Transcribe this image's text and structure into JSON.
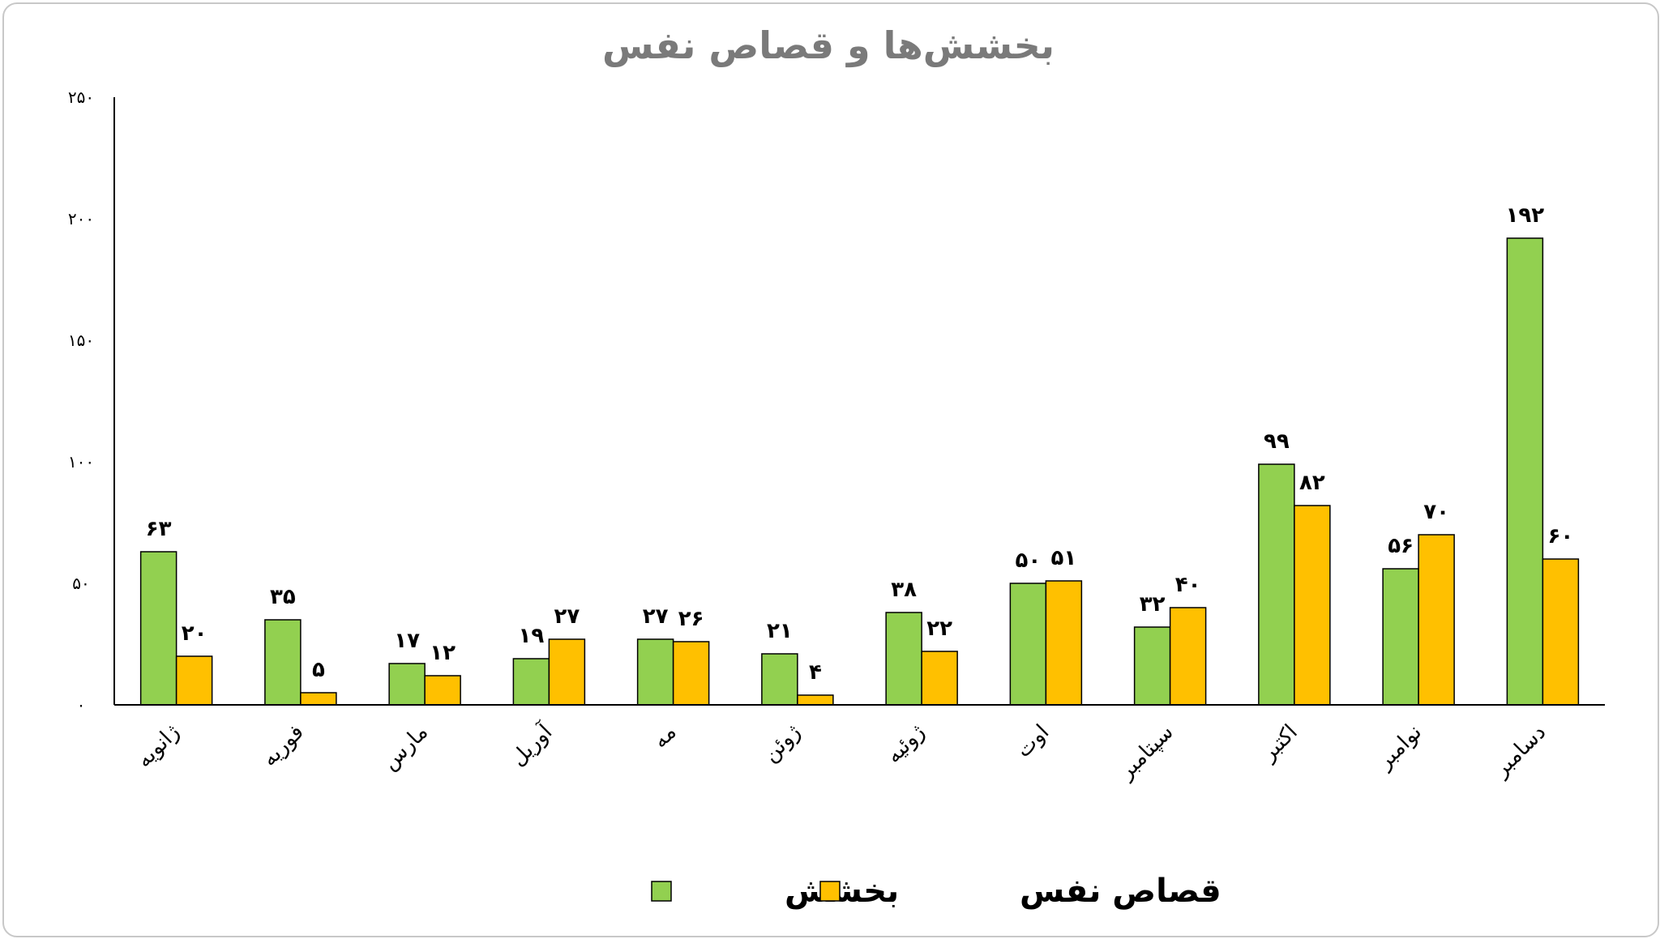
{
  "chart_data": {
    "type": "bar",
    "title": "بخشش‌ها و قصاص نفس",
    "xlabel": "",
    "ylabel": "",
    "ylim": [
      0,
      250
    ],
    "yticks": [
      0,
      50,
      100,
      150,
      200,
      250
    ],
    "ytick_labels": [
      "۰",
      "۵۰",
      "۱۰۰",
      "۱۵۰",
      "۲۰۰",
      "۲۵۰"
    ],
    "grid": false,
    "legend_position": "bottom",
    "categories": [
      "ژانویه",
      "فوریه",
      "مارس",
      "آوریل",
      "مه",
      "ژوئن",
      "ژوئیه",
      "اوت",
      "سپتامبر",
      "اکتبر",
      "نوامبر",
      "دسامبر"
    ],
    "series": [
      {
        "name": "بخشش",
        "color": "#92d050",
        "values": [
          63,
          35,
          17,
          19,
          27,
          21,
          38,
          50,
          32,
          99,
          56,
          192
        ],
        "value_labels": [
          "۶۳",
          "۳۵",
          "۱۷",
          "۱۹",
          "۲۷",
          "۲۱",
          "۳۸",
          "۵۰",
          "۳۲",
          "۹۹",
          "۵۶",
          "۱۹۲"
        ]
      },
      {
        "name": "قصاص نفس",
        "color": "#ffc000",
        "values": [
          20,
          5,
          12,
          27,
          26,
          4,
          22,
          51,
          40,
          82,
          70,
          60
        ],
        "value_labels": [
          "۲۰",
          "۵",
          "۱۲",
          "۲۷",
          "۲۶",
          "۴",
          "۲۲",
          "۵۱",
          "۴۰",
          "۸۲",
          "۷۰",
          "۶۰"
        ]
      }
    ]
  }
}
